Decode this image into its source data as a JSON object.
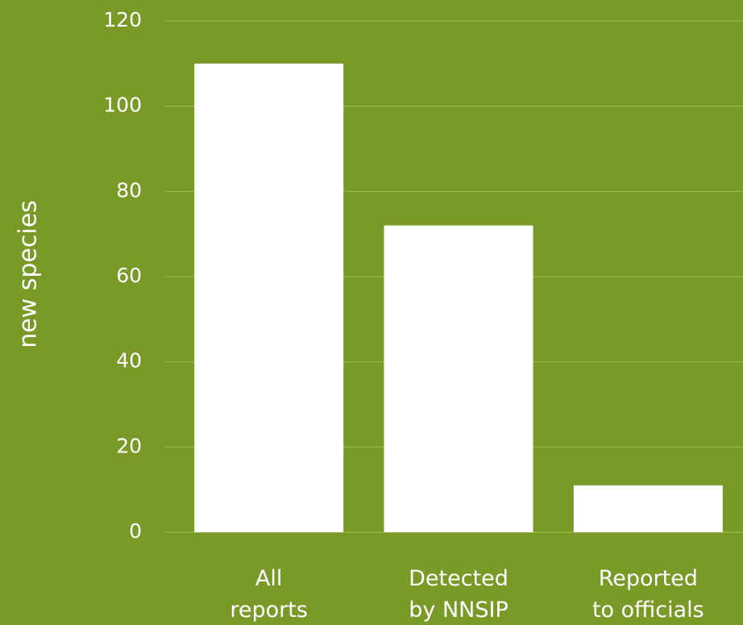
{
  "chart_data": {
    "type": "bar",
    "ylabel": "new species",
    "categories": [
      "All reports",
      "Detected by NNSIP",
      "Reported to officials"
    ],
    "values": [
      110,
      72,
      11
    ],
    "color": "#ffffff",
    "ylim": [
      0,
      120
    ],
    "yticks": [
      0,
      20,
      40,
      60,
      80,
      100,
      120
    ],
    "grid": true
  }
}
